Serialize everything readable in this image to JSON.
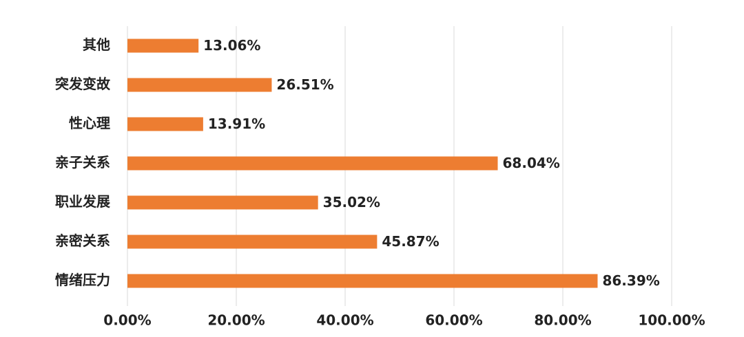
{
  "chart_data": {
    "type": "barh",
    "categories": [
      "其他",
      "突发变故",
      "性心理",
      "亲子关系",
      "职业发展",
      "亲密关系",
      "情绪压力"
    ],
    "values": [
      13.06,
      26.51,
      13.91,
      68.04,
      35.02,
      45.87,
      86.39
    ],
    "value_labels": [
      "13.06%",
      "26.51%",
      "13.91%",
      "68.04%",
      "35.02%",
      "45.87%",
      "86.39%"
    ],
    "color": "#ed7d31",
    "xlim": [
      0,
      100
    ],
    "xticks": [
      {
        "value": 0,
        "label": "0.00%"
      },
      {
        "value": 20,
        "label": "20.00%"
      },
      {
        "value": 40,
        "label": "40.00%"
      },
      {
        "value": 60,
        "label": "60.00%"
      },
      {
        "value": 80,
        "label": "80.00%"
      },
      {
        "value": 100,
        "label": "100.00%"
      }
    ],
    "grid": true
  }
}
